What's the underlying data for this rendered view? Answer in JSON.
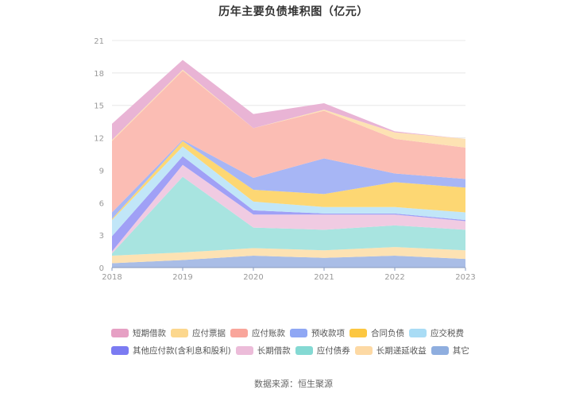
{
  "title": "历年主要负债堆积图（亿元）",
  "source": "数据来源：恒生聚源",
  "legend": {
    "row1": [
      {
        "label": "短期借款",
        "color": "#e6a0c4"
      },
      {
        "label": "应付票据",
        "color": "#fcd78d"
      },
      {
        "label": "应付账款",
        "color": "#f9a59b"
      },
      {
        "label": "预收款项",
        "color": "#8fa7f4"
      },
      {
        "label": "合同负债",
        "color": "#fcc741"
      },
      {
        "label": "应交税费",
        "color": "#a9dcf5"
      }
    ],
    "row2": [
      {
        "label": "其他应付款(含利息和股利)",
        "color": "#7b7bf2"
      },
      {
        "label": "长期借款",
        "color": "#ecbcd9"
      },
      {
        "label": "应付债券",
        "color": "#84d9d3"
      },
      {
        "label": "长期递延收益",
        "color": "#fdd9a4"
      },
      {
        "label": "其它",
        "color": "#8faedf"
      }
    ]
  },
  "chart_data": {
    "type": "area",
    "stacked": true,
    "title": "历年主要负债堆积图（亿元）",
    "xlabel": "",
    "ylabel": "",
    "categories": [
      "2018",
      "2019",
      "2020",
      "2021",
      "2022",
      "2023"
    ],
    "ylim": [
      0,
      21
    ],
    "yticks": [
      0,
      3,
      6,
      9,
      12,
      15,
      18,
      21
    ],
    "grid": true,
    "legend_position": "bottom",
    "series": [
      {
        "name": "其它",
        "color": "#a9bde6",
        "values": [
          0.4,
          0.7,
          1.1,
          0.9,
          1.1,
          0.8
        ]
      },
      {
        "name": "长期递延收益",
        "color": "#fde2b3",
        "values": [
          0.7,
          0.7,
          0.7,
          0.7,
          0.8,
          0.8
        ]
      },
      {
        "name": "应付债券",
        "color": "#a8e4e0",
        "values": [
          0.2,
          7.0,
          1.9,
          1.9,
          2.0,
          1.9
        ]
      },
      {
        "name": "长期借款",
        "color": "#f0cbe2",
        "values": [
          0.2,
          1.1,
          1.2,
          1.4,
          1.0,
          0.8
        ]
      },
      {
        "name": "其他应付款(含利息和股利)",
        "color": "#a0a0f6",
        "values": [
          1.4,
          0.8,
          0.4,
          0.1,
          0.1,
          0.1
        ]
      },
      {
        "name": "应交税费",
        "color": "#c1e6f8",
        "values": [
          1.5,
          0.9,
          0.8,
          0.6,
          0.6,
          0.7
        ]
      },
      {
        "name": "合同负债",
        "color": "#fdd773",
        "values": [
          0.1,
          0.5,
          1.1,
          1.2,
          2.3,
          2.3
        ]
      },
      {
        "name": "预收款项",
        "color": "#a7b6f5",
        "values": [
          0.6,
          0.1,
          1.1,
          3.3,
          0.8,
          0.8
        ]
      },
      {
        "name": "应付账款",
        "color": "#fbbdb4",
        "values": [
          6.6,
          6.4,
          4.6,
          4.4,
          3.2,
          2.9
        ]
      },
      {
        "name": "应付票据",
        "color": "#fde2b3",
        "values": [
          0.1,
          0.1,
          0.0,
          0.1,
          0.6,
          0.8
        ]
      },
      {
        "name": "短期借款",
        "color": "#e9b4d5",
        "values": [
          1.5,
          0.9,
          1.3,
          0.6,
          0.1,
          0.0
        ]
      }
    ]
  }
}
